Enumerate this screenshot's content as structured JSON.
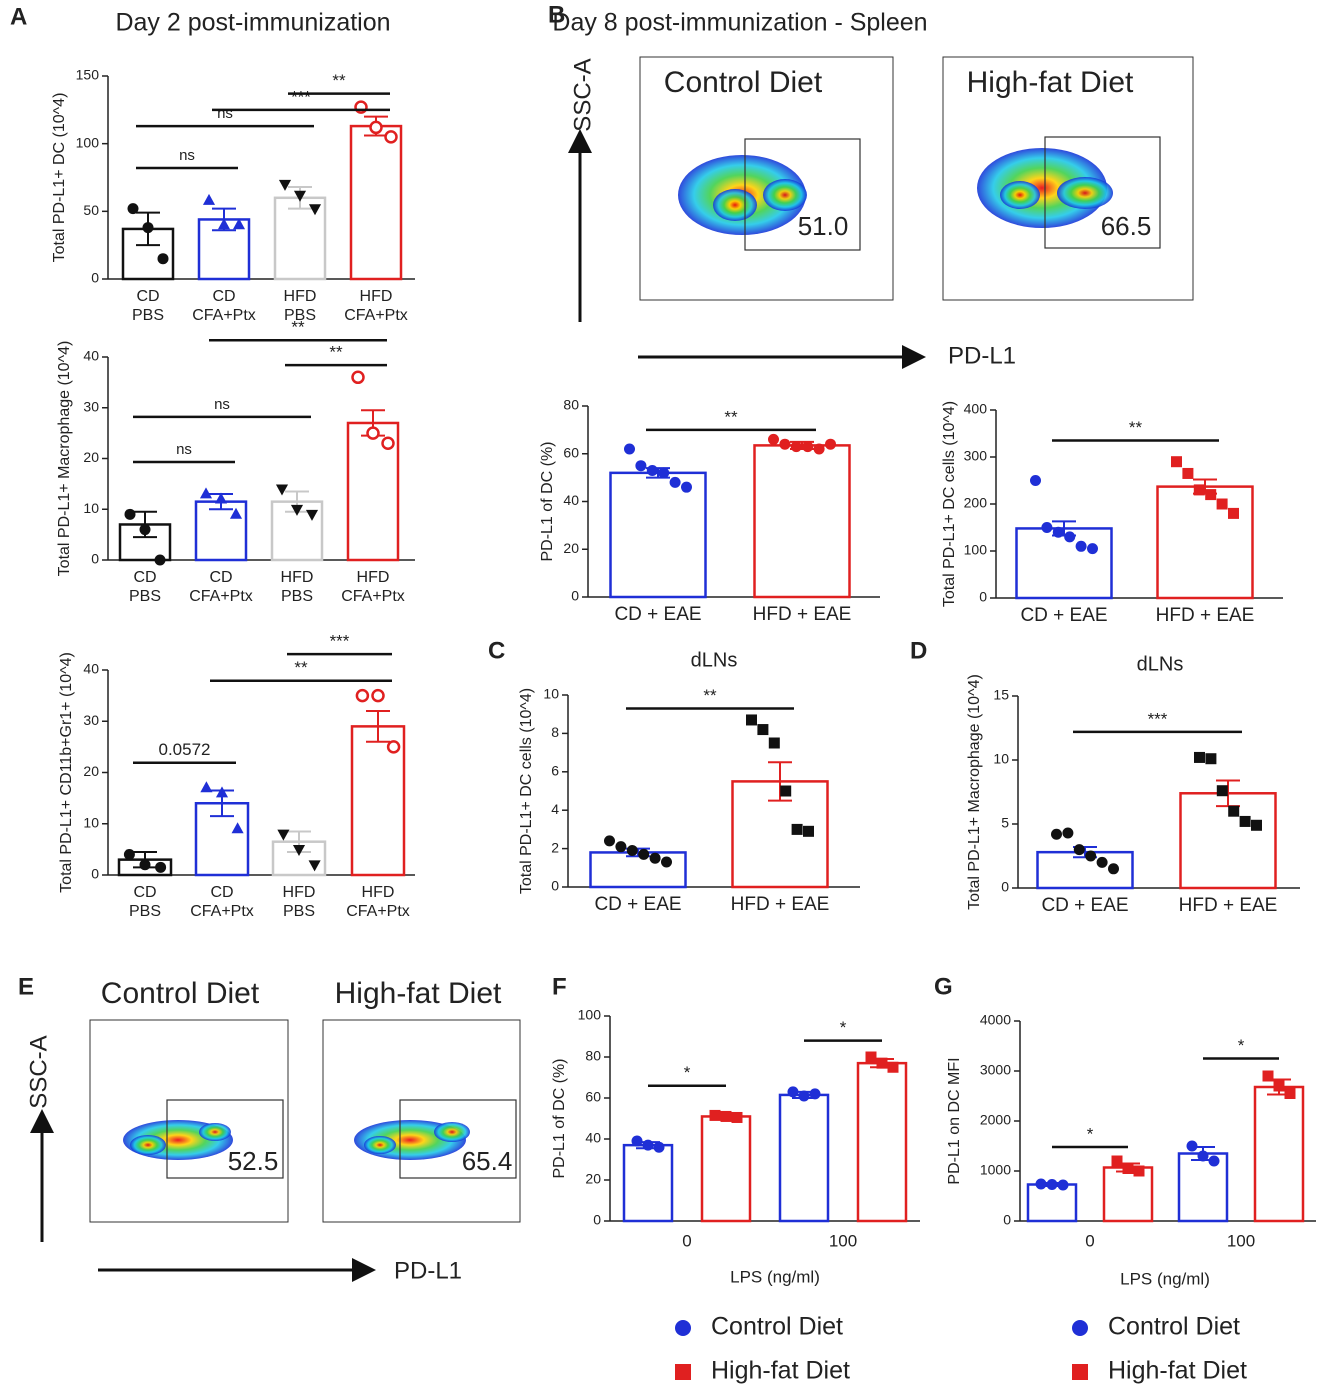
{
  "panel_labels": [
    "A",
    "B",
    "C",
    "D",
    "E",
    "F",
    "G"
  ],
  "flow_plots": [
    {
      "title": "Control Diet",
      "gate": "51.0"
    },
    {
      "title": "High-fat Diet",
      "gate": "66.5"
    },
    {
      "title": "Control Diet",
      "gate": "52.5"
    },
    {
      "title": "High-fat Diet",
      "gate": "65.4"
    }
  ],
  "flow_axes": [
    {
      "y": "SSC-A",
      "x": "PD-L1"
    },
    {
      "y": "SSC-A",
      "x": "PD-L1"
    }
  ],
  "flow_title": "Day 8 post-immunization - Spleen",
  "chart_data": [
    {
      "type": "bar",
      "title": "Day 2 post-immunization",
      "ylabel": "Total PD-L1+ DC (10^4)",
      "categories": [
        [
          "CD",
          "PBS"
        ],
        [
          "CD",
          "CFA+Ptx"
        ],
        [
          "HFD",
          "PBS"
        ],
        [
          "HFD",
          "CFA+Ptx"
        ]
      ],
      "values": [
        37,
        44,
        60,
        113
      ],
      "errors": [
        12,
        8,
        8,
        7
      ],
      "colors": [
        "#111111",
        "#1f2fd6",
        "#c8c8c8",
        "#e02020"
      ],
      "point_colors": [
        "#111111",
        "#1f2fd6",
        "#111111",
        "#e02020"
      ],
      "markers": [
        "circle",
        "triangle",
        "triangle-down",
        "open-circle"
      ],
      "points": [
        [
          52,
          38,
          15
        ],
        [
          58,
          40,
          40
        ],
        [
          70,
          62,
          52
        ],
        [
          127,
          112,
          105
        ]
      ],
      "ylim": [
        0,
        150
      ],
      "yticks": [
        0,
        50,
        100,
        150
      ],
      "brackets": [
        {
          "from": 0,
          "to": 1,
          "y": 82,
          "label": "ns"
        },
        {
          "from": 0,
          "to": 2,
          "y": 113,
          "label": "ns"
        },
        {
          "from": 1,
          "to": 3,
          "y": 125,
          "label": "***"
        },
        {
          "from": 2,
          "to": 3,
          "y": 137,
          "label": "**"
        }
      ]
    },
    {
      "type": "bar",
      "ylabel": "Total PD-L1+ Macrophage (10^4)",
      "categories": [
        [
          "CD",
          "PBS"
        ],
        [
          "CD",
          "CFA+Ptx"
        ],
        [
          "HFD",
          "PBS"
        ],
        [
          "HFD",
          "CFA+Ptx"
        ]
      ],
      "values": [
        7,
        11.5,
        11.5,
        27
      ],
      "errors": [
        2.5,
        1.5,
        2,
        2.5
      ],
      "colors": [
        "#111111",
        "#1f2fd6",
        "#c8c8c8",
        "#e02020"
      ],
      "point_colors": [
        "#111111",
        "#1f2fd6",
        "#111111",
        "#e02020"
      ],
      "markers": [
        "circle",
        "triangle",
        "triangle-down",
        "open-circle"
      ],
      "points": [
        [
          9,
          6,
          0
        ],
        [
          13,
          12,
          9
        ],
        [
          14,
          10,
          9
        ],
        [
          36,
          25,
          23
        ]
      ],
      "ylim": [
        0,
        40
      ],
      "yticks": [
        0,
        10,
        20,
        30,
        40
      ],
      "brackets": [
        {
          "from": 0,
          "to": 1,
          "y": 19.3,
          "label": "ns"
        },
        {
          "from": 0,
          "to": 2,
          "y": 28.2,
          "label": "ns"
        },
        {
          "from": 2,
          "to": 3,
          "y": 38.4,
          "label": "**"
        },
        {
          "from": 1,
          "to": 3,
          "y": 43.3,
          "label": "**"
        }
      ]
    },
    {
      "type": "bar",
      "ylabel": "Total PD-L1+ CD11b+Gr1+ (10^4)",
      "categories": [
        [
          "CD",
          "PBS"
        ],
        [
          "CD",
          "CFA+Ptx"
        ],
        [
          "HFD",
          "PBS"
        ],
        [
          "HFD",
          "CFA+Ptx"
        ]
      ],
      "values": [
        3,
        14,
        6.5,
        29
      ],
      "errors": [
        1.5,
        2.5,
        2,
        3
      ],
      "colors": [
        "#111111",
        "#1f2fd6",
        "#c8c8c8",
        "#e02020"
      ],
      "point_colors": [
        "#111111",
        "#1f2fd6",
        "#111111",
        "#e02020"
      ],
      "markers": [
        "circle",
        "triangle",
        "triangle-down",
        "open-circle"
      ],
      "points": [
        [
          4,
          2,
          1.5
        ],
        [
          17,
          16,
          9
        ],
        [
          8,
          5,
          2
        ],
        [
          35,
          35,
          25
        ]
      ],
      "ylim": [
        0,
        40
      ],
      "yticks": [
        0,
        10,
        20,
        30,
        40
      ],
      "brackets": [
        {
          "from": 0,
          "to": 1,
          "y": 21.9,
          "label": "0.0572"
        },
        {
          "from": 1,
          "to": 3,
          "y": 37.9,
          "label": "**"
        },
        {
          "from": 2,
          "to": 3,
          "y": 43.1,
          "label": "***"
        }
      ]
    },
    {
      "type": "bar",
      "ylabel": "PD-L1 of DC (%)",
      "categories": [
        [
          "CD + EAE"
        ],
        [
          "HFD + EAE"
        ]
      ],
      "values": [
        52,
        63.5
      ],
      "errors": [
        2,
        1.5
      ],
      "colors": [
        "#1f2fd6",
        "#e02020"
      ],
      "point_colors": [
        "#1f2fd6",
        "#e02020"
      ],
      "markers": [
        "circle",
        "circle"
      ],
      "points": [
        [
          62,
          55,
          53,
          52,
          48,
          46
        ],
        [
          66,
          64,
          63,
          63,
          62,
          64
        ]
      ],
      "ylim": [
        0,
        80
      ],
      "yticks": [
        0,
        20,
        40,
        60,
        80
      ],
      "brackets": [
        {
          "from": 0,
          "to": 1,
          "y": 70,
          "label": "**"
        }
      ]
    },
    {
      "type": "bar",
      "ylabel": "Total PD-L1+ DC cells (10^4)",
      "categories": [
        [
          "CD + EAE"
        ],
        [
          "HFD + EAE"
        ]
      ],
      "values": [
        148,
        237
      ],
      "errors": [
        15,
        15
      ],
      "colors": [
        "#1f2fd6",
        "#e02020"
      ],
      "point_colors": [
        "#1f2fd6",
        "#e02020"
      ],
      "markers": [
        "circle",
        "square"
      ],
      "points": [
        [
          250,
          150,
          140,
          130,
          110,
          105
        ],
        [
          290,
          265,
          230,
          220,
          200,
          180
        ]
      ],
      "ylim": [
        0,
        400
      ],
      "yticks": [
        0,
        100,
        200,
        300,
        400
      ],
      "brackets": [
        {
          "from": 0,
          "to": 1,
          "y": 335,
          "label": "**"
        }
      ]
    },
    {
      "type": "bar",
      "title": "dLNs",
      "ylabel": "Total PD-L1+ DC cells (10^4)",
      "categories": [
        [
          "CD + EAE"
        ],
        [
          "HFD + EAE"
        ]
      ],
      "values": [
        1.8,
        5.5
      ],
      "errors": [
        0.2,
        1.0
      ],
      "colors": [
        "#1f2fd6",
        "#e02020"
      ],
      "point_colors": [
        "#111111",
        "#111111"
      ],
      "markers": [
        "circle",
        "square"
      ],
      "points": [
        [
          2.4,
          2.1,
          1.9,
          1.7,
          1.5,
          1.3
        ],
        [
          8.7,
          8.2,
          7.5,
          5.0,
          3.0,
          2.9
        ]
      ],
      "ylim": [
        0,
        10
      ],
      "yticks": [
        0,
        2,
        4,
        6,
        8,
        10
      ],
      "brackets": [
        {
          "from": 0,
          "to": 1,
          "y": 9.3,
          "label": "**"
        }
      ]
    },
    {
      "type": "bar",
      "title": "dLNs",
      "ylabel": "Total PD-L1+ Macrophage (10^4)",
      "categories": [
        [
          "CD + EAE"
        ],
        [
          "HFD + EAE"
        ]
      ],
      "values": [
        2.8,
        7.4
      ],
      "errors": [
        0.4,
        1.0
      ],
      "colors": [
        "#1f2fd6",
        "#e02020"
      ],
      "point_colors": [
        "#111111",
        "#111111"
      ],
      "markers": [
        "circle",
        "square"
      ],
      "points": [
        [
          4.2,
          4.3,
          3.0,
          2.5,
          2.0,
          1.5
        ],
        [
          10.2,
          10.1,
          7.6,
          6.0,
          5.2,
          4.9
        ]
      ],
      "ylim": [
        0,
        15
      ],
      "yticks": [
        0,
        5,
        10,
        15
      ],
      "brackets": [
        {
          "from": 0,
          "to": 1,
          "y": 12.2,
          "label": "***"
        }
      ]
    },
    {
      "type": "grouped_bar",
      "ylabel": "PD-L1 of DC (%)",
      "xlabel": "LPS (ng/ml)",
      "categories": [
        "0",
        "100"
      ],
      "series": [
        {
          "name": "Control Diet",
          "color": "#1f2fd6",
          "marker": "circle",
          "values": [
            37,
            61.5
          ],
          "errors": [
            1.5,
            1.5
          ],
          "points": [
            [
              39,
              37,
              36
            ],
            [
              63,
              61,
              62
            ]
          ]
        },
        {
          "name": "High-fat Diet",
          "color": "#e02020",
          "marker": "square",
          "values": [
            51,
            77
          ],
          "errors": [
            1,
            2
          ],
          "points": [
            [
              51.5,
              51,
              50.5
            ],
            [
              80,
              77,
              75
            ]
          ]
        }
      ],
      "ylim": [
        0,
        100
      ],
      "yticks": [
        0,
        20,
        40,
        60,
        80,
        100
      ],
      "legend": true,
      "brackets": [
        {
          "category": 0,
          "y": 66,
          "label": "*"
        },
        {
          "category": 1,
          "y": 88,
          "label": "*"
        }
      ]
    },
    {
      "type": "grouped_bar",
      "ylabel": "PD-L1 on DC MFI",
      "xlabel": "LPS (ng/ml)",
      "categories": [
        "0",
        "100"
      ],
      "series": [
        {
          "name": "Control Diet",
          "color": "#1f2fd6",
          "marker": "circle",
          "values": [
            730,
            1350
          ],
          "errors": [
            30,
            130
          ],
          "points": [
            [
              740,
              730,
              720
            ],
            [
              1500,
              1300,
              1200
            ]
          ]
        },
        {
          "name": "High-fat Diet",
          "color": "#e02020",
          "marker": "square",
          "values": [
            1070,
            2680
          ],
          "errors": [
            80,
            150
          ],
          "points": [
            [
              1200,
              1050,
              1000
            ],
            [
              2900,
              2700,
              2550
            ]
          ]
        }
      ],
      "ylim": [
        0,
        4000
      ],
      "yticks": [
        0,
        1000,
        2000,
        3000,
        4000
      ],
      "legend": true,
      "brackets": [
        {
          "category": 0,
          "y": 1480,
          "label": "*"
        },
        {
          "category": 1,
          "y": 3250,
          "label": "*"
        }
      ]
    }
  ]
}
